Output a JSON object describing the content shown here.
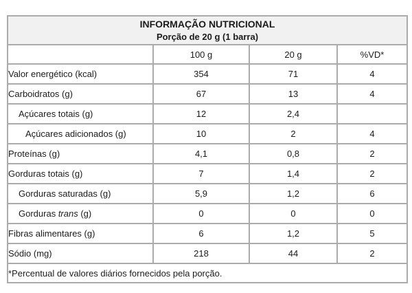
{
  "table": {
    "title": "INFORMAÇÃO NUTRICIONAL",
    "subtitle": "Porção de 20 g (1 barra)",
    "columns": [
      "",
      "100 g",
      "20 g",
      "%VD*"
    ],
    "rows": [
      {
        "label": "Valor energético (kcal)",
        "indent": 0,
        "per100": "354",
        "per20": "71",
        "vd": "4"
      },
      {
        "label": "Carboidratos (g)",
        "indent": 0,
        "per100": "67",
        "per20": "13",
        "vd": "4"
      },
      {
        "label": "Açúcares totais (g)",
        "indent": 1,
        "per100": "12",
        "per20": "2,4",
        "vd": ""
      },
      {
        "label": "Açúcares adicionados (g)",
        "indent": 2,
        "per100": "10",
        "per20": "2",
        "vd": "4"
      },
      {
        "label": "Proteínas (g)",
        "indent": 0,
        "per100": "4,1",
        "per20": "0,8",
        "vd": "2"
      },
      {
        "label": "Gorduras totais (g)",
        "indent": 0,
        "per100": "7",
        "per20": "1,4",
        "vd": "2"
      },
      {
        "label": "Gorduras saturadas (g)",
        "indent": 1,
        "per100": "5,9",
        "per20": "1,2",
        "vd": "6"
      },
      {
        "label": "Gorduras trans (g)",
        "indent": 1,
        "italic_word": "trans",
        "per100": "0",
        "per20": "0",
        "vd": "0"
      },
      {
        "label": "Fibras alimentares (g)",
        "indent": 0,
        "per100": "6",
        "per20": "1,2",
        "vd": "5"
      },
      {
        "label": "Sódio (mg)",
        "indent": 0,
        "per100": "218",
        "per20": "44",
        "vd": "2"
      }
    ],
    "footnote": "*Percentual de valores diários fornecidos pela porção.",
    "colors": {
      "header_background": "#f1f1f1",
      "border": "#ababab",
      "outer_border": "#909090",
      "text": "#1b1b1b"
    }
  }
}
